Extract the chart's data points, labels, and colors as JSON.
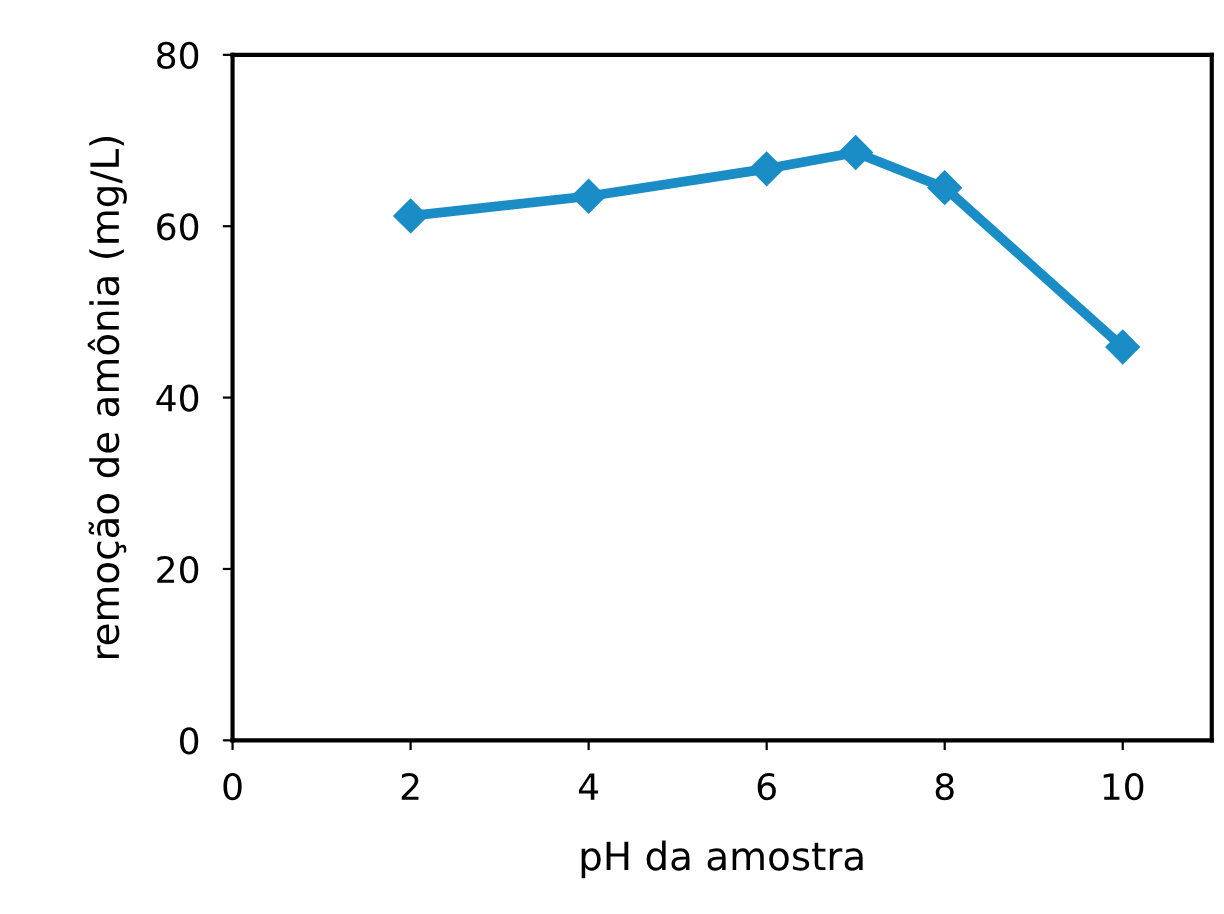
{
  "chart_data": {
    "type": "line",
    "xlabel": "pH da amostra",
    "ylabel": "remoção de amônia (mg/L)",
    "x": [
      2,
      4,
      6,
      7,
      8,
      10
    ],
    "series": [
      {
        "color": "#1a8cc6",
        "values": [
          61.2,
          63.5,
          66.7,
          68.6,
          64.5,
          45.9
        ]
      }
    ],
    "xlim": [
      0,
      11
    ],
    "xticks": [
      0,
      2,
      4,
      6,
      8,
      10
    ],
    "ylim": [
      0,
      80
    ],
    "yticks": [
      0,
      20,
      40,
      60,
      80
    ],
    "marker": "diamond",
    "line_style": "solid",
    "grid": false,
    "legend": false
  }
}
